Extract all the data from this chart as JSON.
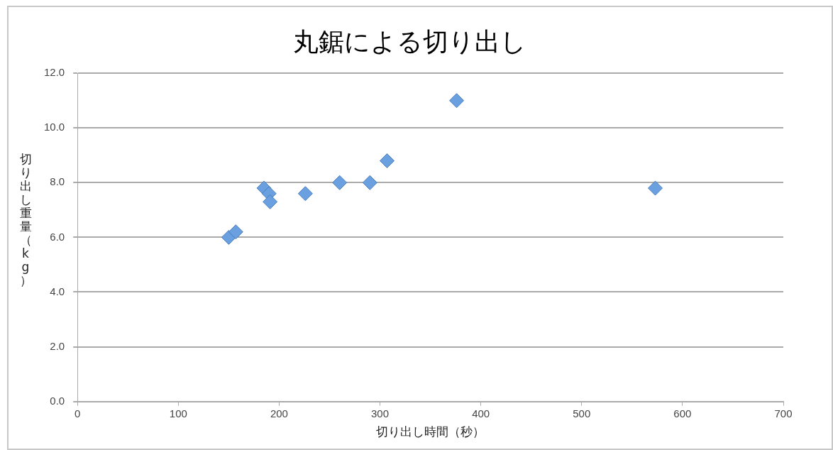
{
  "chart_data": {
    "type": "scatter",
    "title": "丸鋸による切り出し",
    "xlabel": "切り出し時間（秒）",
    "ylabel": "切り出し重量（kg）",
    "x": [
      150,
      157,
      185,
      190,
      191,
      226,
      260,
      290,
      307,
      376,
      573
    ],
    "series": [
      {
        "color": "#6a9fe0",
        "values": [
          6.0,
          6.2,
          7.8,
          7.6,
          7.3,
          7.6,
          8.0,
          8.0,
          8.8,
          11.0,
          7.8
        ]
      }
    ],
    "xlim": [
      0,
      700
    ],
    "xticks": [
      0,
      100,
      200,
      300,
      400,
      500,
      600,
      700
    ],
    "ylim": [
      0,
      12
    ],
    "yticks": [
      {
        "value": 0,
        "label": "0.0"
      },
      {
        "value": 2,
        "label": "2.0"
      },
      {
        "value": 4,
        "label": "4.0"
      },
      {
        "value": 6,
        "label": "6.0"
      },
      {
        "value": 8,
        "label": "8.0"
      },
      {
        "value": 10,
        "label": "10.0"
      },
      {
        "value": 12,
        "label": "12.0"
      }
    ],
    "grid": "y",
    "legend": false,
    "marker": "diamond"
  }
}
